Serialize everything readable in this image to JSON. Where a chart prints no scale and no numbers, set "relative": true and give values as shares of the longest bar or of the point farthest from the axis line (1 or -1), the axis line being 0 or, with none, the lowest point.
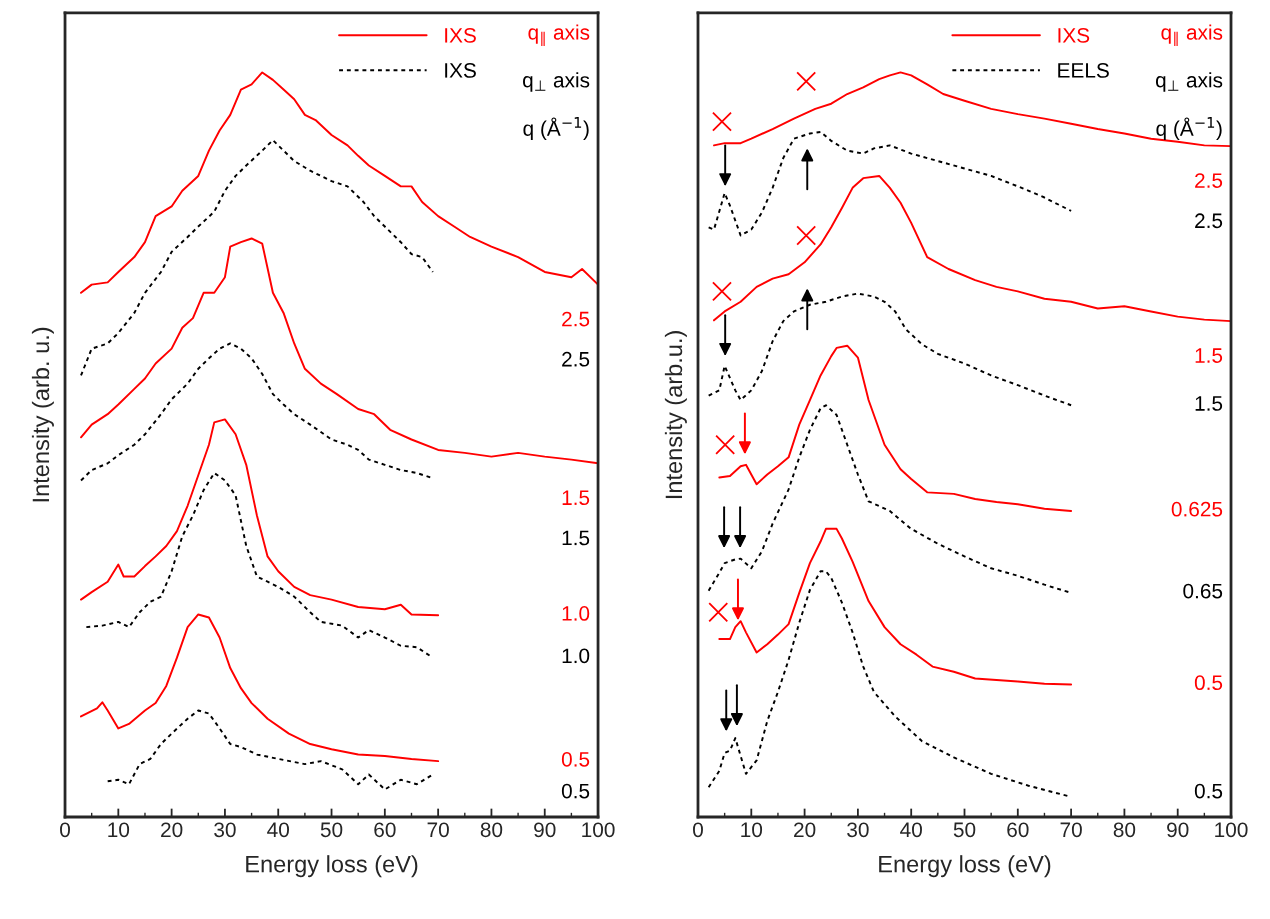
{
  "chart_data": [
    {
      "type": "line",
      "relative": true,
      "xlabel": "Energy loss (eV)",
      "ylabel": "Intensity (arb. u.)",
      "xlim": [
        0,
        100
      ],
      "xticks": [
        0,
        {
          "value": 5,
          "label": null
        },
        10,
        {
          "value": 15,
          "label": null
        },
        20,
        {
          "value": 25,
          "label": null
        },
        30,
        {
          "value": 35,
          "label": null
        },
        40,
        {
          "value": 45,
          "label": null
        },
        50,
        {
          "value": 55,
          "label": null
        },
        60,
        {
          "value": 65,
          "label": null
        },
        70,
        {
          "value": 75,
          "label": null
        },
        80,
        {
          "value": 85,
          "label": null
        },
        90,
        {
          "value": 95,
          "label": null
        },
        100
      ],
      "tick_labels": "x",
      "legend": "top right",
      "series": [
        {
          "name": "IXS",
          "color": "#ff0000",
          "line_style": "solid",
          "x": [
            3,
            5,
            8,
            10,
            13,
            15,
            17,
            20,
            22,
            25,
            27,
            29,
            31,
            33,
            35,
            37,
            39,
            41,
            43,
            45,
            47,
            50,
            53,
            55,
            57,
            60,
            63,
            65,
            67,
            70,
            73,
            76,
            80,
            85,
            90,
            95,
            97,
            100
          ],
          "values": [
            0.704,
            0.715,
            0.718,
            0.732,
            0.752,
            0.772,
            0.807,
            0.82,
            0.841,
            0.861,
            0.895,
            0.922,
            0.943,
            0.977,
            0.984,
            1.0,
            0.99,
            0.977,
            0.964,
            0.943,
            0.936,
            0.916,
            0.902,
            0.888,
            0.875,
            0.861,
            0.847,
            0.847,
            0.826,
            0.807,
            0.793,
            0.779,
            0.766,
            0.752,
            0.732,
            0.725,
            0.736,
            0.715
          ]
        },
        {
          "name": "IXS",
          "color": "#000000",
          "line_style": "dotted",
          "x": [
            3,
            5,
            8,
            10,
            13,
            15,
            18,
            20,
            23,
            25,
            28,
            30,
            32,
            34,
            37,
            39,
            41,
            43,
            46,
            50,
            53,
            56,
            58,
            60,
            63,
            65,
            67,
            69
          ],
          "values": [
            0.593,
            0.629,
            0.636,
            0.65,
            0.677,
            0.704,
            0.732,
            0.759,
            0.779,
            0.793,
            0.813,
            0.841,
            0.861,
            0.875,
            0.895,
            0.909,
            0.895,
            0.881,
            0.868,
            0.854,
            0.847,
            0.826,
            0.807,
            0.793,
            0.772,
            0.756,
            0.752,
            0.732
          ]
        },
        {
          "color": "#ff0000",
          "line_style": "solid",
          "x": [
            3,
            5,
            8,
            10,
            13,
            15,
            17,
            20,
            22,
            24,
            26,
            28,
            30,
            31,
            33,
            35,
            37,
            39,
            41,
            43,
            45,
            48,
            51,
            55,
            58,
            61,
            65,
            70,
            75,
            80,
            85,
            90,
            95,
            100
          ],
          "values": [
            0.51,
            0.527,
            0.541,
            0.554,
            0.575,
            0.589,
            0.609,
            0.629,
            0.657,
            0.67,
            0.704,
            0.704,
            0.725,
            0.766,
            0.772,
            0.777,
            0.77,
            0.704,
            0.677,
            0.636,
            0.602,
            0.582,
            0.568,
            0.548,
            0.541,
            0.52,
            0.507,
            0.493,
            0.489,
            0.484,
            0.489,
            0.484,
            0.48,
            0.475
          ]
        },
        {
          "color": "#000000",
          "line_style": "dotted",
          "x": [
            3,
            5,
            8,
            10,
            13,
            15,
            18,
            20,
            23,
            25,
            27,
            29,
            31,
            33,
            35,
            37,
            39,
            41,
            43,
            46,
            50,
            53,
            55,
            57,
            60,
            63,
            66,
            69
          ],
          "values": [
            0.452,
            0.466,
            0.475,
            0.486,
            0.5,
            0.514,
            0.541,
            0.561,
            0.582,
            0.602,
            0.616,
            0.629,
            0.636,
            0.629,
            0.616,
            0.595,
            0.568,
            0.554,
            0.541,
            0.527,
            0.507,
            0.5,
            0.493,
            0.48,
            0.473,
            0.466,
            0.462,
            0.455
          ]
        },
        {
          "color": "#ff0000",
          "line_style": "solid",
          "x": [
            3,
            5,
            8,
            10,
            11,
            13,
            15,
            17,
            19,
            21,
            23,
            25,
            27,
            28,
            30,
            32,
            34,
            36,
            38,
            40,
            43,
            46,
            50,
            55,
            60,
            63,
            65,
            70
          ],
          "values": [
            0.292,
            0.302,
            0.316,
            0.339,
            0.323,
            0.323,
            0.337,
            0.35,
            0.364,
            0.384,
            0.418,
            0.459,
            0.5,
            0.53,
            0.534,
            0.514,
            0.473,
            0.405,
            0.35,
            0.33,
            0.309,
            0.298,
            0.292,
            0.282,
            0.279,
            0.285,
            0.272,
            0.271
          ]
        },
        {
          "color": "#000000",
          "line_style": "dotted",
          "x": [
            4,
            7,
            10,
            12,
            14,
            16,
            18,
            20,
            22,
            24,
            26,
            28,
            30,
            32,
            34,
            36,
            38,
            40,
            43,
            46,
            48,
            52,
            55,
            57,
            60,
            63,
            66,
            69
          ],
          "values": [
            0.255,
            0.257,
            0.262,
            0.255,
            0.275,
            0.289,
            0.296,
            0.33,
            0.377,
            0.405,
            0.439,
            0.462,
            0.452,
            0.432,
            0.364,
            0.323,
            0.316,
            0.309,
            0.296,
            0.275,
            0.262,
            0.257,
            0.241,
            0.251,
            0.241,
            0.23,
            0.228,
            0.214
          ]
        },
        {
          "color": "#ff0000",
          "line_style": "solid",
          "x": [
            3,
            6,
            7,
            8,
            10,
            12,
            15,
            17,
            19,
            21,
            23,
            25,
            27,
            29,
            31,
            33,
            35,
            38,
            42,
            46,
            50,
            55,
            60,
            65,
            70
          ],
          "values": [
            0.135,
            0.146,
            0.154,
            0.143,
            0.119,
            0.125,
            0.143,
            0.153,
            0.176,
            0.214,
            0.255,
            0.272,
            0.268,
            0.241,
            0.2,
            0.173,
            0.153,
            0.132,
            0.112,
            0.098,
            0.091,
            0.084,
            0.082,
            0.078,
            0.075
          ]
        },
        {
          "color": "#000000",
          "line_style": "dotted",
          "x": [
            8,
            10,
            12,
            14,
            16,
            18,
            20,
            23,
            25,
            27,
            29,
            31,
            33,
            36,
            40,
            45,
            48,
            52,
            55,
            57,
            60,
            63,
            66,
            69
          ],
          "values": [
            0.048,
            0.05,
            0.044,
            0.071,
            0.078,
            0.098,
            0.112,
            0.132,
            0.143,
            0.139,
            0.119,
            0.098,
            0.094,
            0.084,
            0.078,
            0.071,
            0.075,
            0.064,
            0.044,
            0.057,
            0.037,
            0.05,
            0.044,
            0.057
          ]
        }
      ],
      "annotations": [
        "2.5",
        "2.5",
        "1.5",
        "1.5",
        "1.0",
        "1.0",
        "0.5",
        "0.5",
        "q$_{∥}$ axis",
        "q$_{⊥}$ axis",
        "q (Å$^{−1}$)"
      ]
    },
    {
      "type": "line",
      "relative": true,
      "xlabel": "Energy loss (eV)",
      "ylabel": "Intensity (arb.u.)",
      "xlim": [
        0,
        100
      ],
      "xticks": [
        0,
        {
          "value": 5,
          "label": null
        },
        10,
        {
          "value": 15,
          "label": null
        },
        20,
        {
          "value": 25,
          "label": null
        },
        30,
        {
          "value": 35,
          "label": null
        },
        40,
        {
          "value": 45,
          "label": null
        },
        50,
        {
          "value": 55,
          "label": null
        },
        60,
        {
          "value": 65,
          "label": null
        },
        70,
        {
          "value": 75,
          "label": null
        },
        80,
        {
          "value": 85,
          "label": null
        },
        90,
        {
          "value": 95,
          "label": null
        },
        100
      ],
      "tick_labels": "x",
      "legend": "top right",
      "series": [
        {
          "name": "IXS",
          "color": "#ff0000",
          "line_style": "solid",
          "x": [
            3,
            5,
            8,
            10,
            14,
            18,
            22,
            25,
            28,
            31,
            34,
            36,
            38,
            40,
            43,
            46,
            50,
            55,
            60,
            65,
            70,
            75,
            80,
            85,
            90,
            95,
            100
          ],
          "values": [
            0.902,
            0.905,
            0.905,
            0.911,
            0.924,
            0.938,
            0.951,
            0.958,
            0.971,
            0.98,
            0.991,
            0.996,
            1.0,
            0.996,
            0.984,
            0.971,
            0.962,
            0.951,
            0.944,
            0.938,
            0.931,
            0.924,
            0.918,
            0.911,
            0.907,
            0.902,
            0.901
          ]
        },
        {
          "name": "EELS",
          "color": "#000000",
          "line_style": "dotted",
          "x": [
            2,
            3,
            5,
            6,
            8,
            10,
            12,
            14,
            16,
            18,
            21,
            23,
            25,
            28,
            31,
            33,
            36,
            40,
            45,
            50,
            55,
            60,
            65,
            70
          ],
          "values": [
            0.792,
            0.789,
            0.838,
            0.821,
            0.781,
            0.789,
            0.812,
            0.845,
            0.885,
            0.911,
            0.918,
            0.92,
            0.908,
            0.895,
            0.891,
            0.898,
            0.902,
            0.891,
            0.881,
            0.871,
            0.861,
            0.847,
            0.832,
            0.814
          ]
        },
        {
          "color": "#ff0000",
          "line_style": "solid",
          "x": [
            3,
            5,
            8,
            11,
            14,
            17,
            20,
            23,
            25,
            27,
            29,
            31,
            34,
            36,
            38,
            40,
            43,
            47,
            52,
            56,
            60,
            65,
            70,
            75,
            80,
            85,
            90,
            95,
            100
          ],
          "values": [
            0.667,
            0.679,
            0.692,
            0.712,
            0.723,
            0.729,
            0.745,
            0.769,
            0.792,
            0.818,
            0.845,
            0.858,
            0.861,
            0.845,
            0.825,
            0.798,
            0.752,
            0.736,
            0.721,
            0.712,
            0.706,
            0.696,
            0.692,
            0.683,
            0.686,
            0.679,
            0.672,
            0.668,
            0.666
          ]
        },
        {
          "color": "#000000",
          "line_style": "dotted",
          "x": [
            2,
            4,
            5,
            7,
            8,
            10,
            12,
            14,
            16,
            18,
            21,
            24,
            27,
            30,
            33,
            35,
            37,
            39,
            42,
            45,
            50,
            55,
            60,
            65,
            70
          ],
          "values": [
            0.566,
            0.573,
            0.606,
            0.573,
            0.56,
            0.573,
            0.599,
            0.639,
            0.666,
            0.679,
            0.688,
            0.692,
            0.699,
            0.703,
            0.699,
            0.692,
            0.679,
            0.655,
            0.635,
            0.622,
            0.609,
            0.593,
            0.58,
            0.566,
            0.553
          ]
        },
        {
          "color": "#ff0000",
          "line_style": "solid",
          "x": [
            4,
            6,
            8,
            9,
            11,
            13,
            15,
            17,
            19,
            21,
            23,
            25,
            26,
            28,
            30,
            32,
            35,
            38,
            40,
            43,
            48,
            52,
            56,
            60,
            65,
            70
          ],
          "values": [
            0.456,
            0.458,
            0.471,
            0.473,
            0.447,
            0.46,
            0.471,
            0.483,
            0.527,
            0.56,
            0.593,
            0.619,
            0.63,
            0.633,
            0.617,
            0.56,
            0.5,
            0.467,
            0.454,
            0.436,
            0.434,
            0.427,
            0.423,
            0.42,
            0.414,
            0.411
          ]
        },
        {
          "color": "#000000",
          "line_style": "dotted",
          "x": [
            2,
            4,
            5,
            7,
            8,
            10,
            12,
            14,
            17,
            19,
            21,
            23,
            24,
            26,
            28,
            30,
            32,
            36,
            40,
            45,
            50,
            55,
            60,
            65,
            70
          ],
          "values": [
            0.304,
            0.328,
            0.341,
            0.346,
            0.347,
            0.334,
            0.357,
            0.394,
            0.44,
            0.483,
            0.52,
            0.549,
            0.553,
            0.54,
            0.5,
            0.46,
            0.424,
            0.411,
            0.387,
            0.367,
            0.35,
            0.334,
            0.324,
            0.312,
            0.301
          ]
        },
        {
          "color": "#ff0000",
          "line_style": "solid",
          "x": [
            4,
            6,
            7,
            8,
            9,
            11,
            13,
            15,
            17,
            19,
            21,
            23,
            24,
            26,
            27,
            29,
            32,
            35,
            38,
            41,
            44,
            48,
            52,
            56,
            60,
            65,
            70
          ],
          "values": [
            0.239,
            0.239,
            0.255,
            0.263,
            0.248,
            0.221,
            0.232,
            0.245,
            0.259,
            0.301,
            0.341,
            0.37,
            0.387,
            0.387,
            0.374,
            0.343,
            0.29,
            0.255,
            0.232,
            0.218,
            0.202,
            0.195,
            0.186,
            0.184,
            0.182,
            0.179,
            0.178
          ]
        },
        {
          "color": "#000000",
          "line_style": "dotted",
          "x": [
            2,
            4,
            5,
            6,
            7,
            8,
            9,
            11,
            13,
            15,
            17,
            19,
            21,
            23,
            24,
            25,
            27,
            29,
            31,
            33,
            37,
            42,
            48,
            55,
            62,
            70
          ],
          "values": [
            0.04,
            0.062,
            0.086,
            0.089,
            0.106,
            0.082,
            0.058,
            0.076,
            0.129,
            0.168,
            0.211,
            0.261,
            0.305,
            0.33,
            0.33,
            0.321,
            0.288,
            0.248,
            0.202,
            0.168,
            0.135,
            0.102,
            0.08,
            0.058,
            0.042,
            0.027
          ]
        },
        {
          "type": "scatter",
          "marker": "cross",
          "color": "#ff0000",
          "x": [
            4.5,
            20.3,
            4.5,
            20.3,
            5.1,
            3.8
          ],
          "values": [
            0.934,
            0.988,
            0.706,
            0.781,
            0.5,
            0.275
          ]
        }
      ],
      "annotations": [
        "2.5",
        "2.5",
        "1.5",
        "1.5",
        "0.625",
        "0.65",
        "0.5",
        "0.5",
        "q$_{∥}$ axis",
        "q$_{⊥}$ axis",
        "q (Å$^{−1}$)"
      ]
    }
  ]
}
